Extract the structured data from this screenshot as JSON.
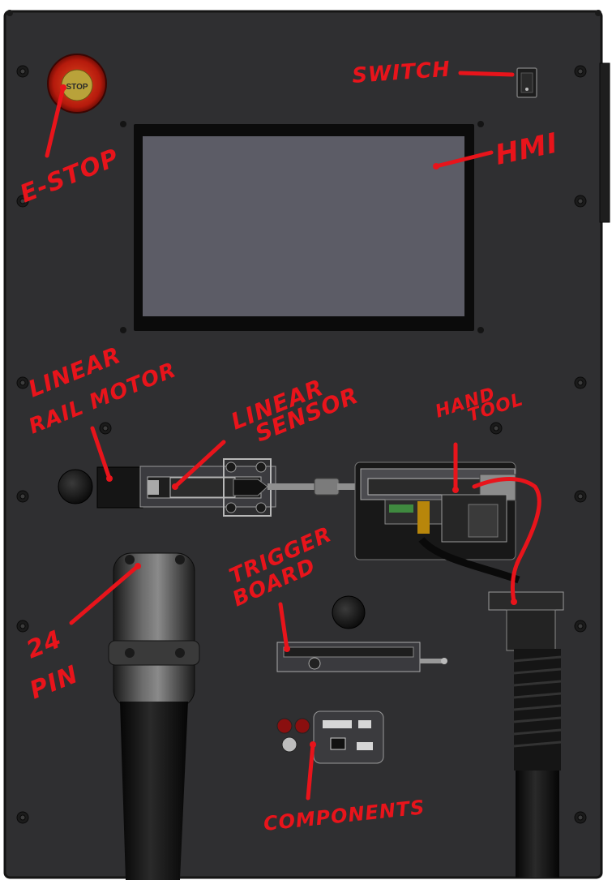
{
  "panel": {
    "colors": {
      "panel": "#2f2f31",
      "panel_edge": "#141414",
      "annotation": "#e8141b",
      "screen": "#5c5c66",
      "screen_bezel": "#0b0b0b"
    },
    "estop_text": "STOP"
  },
  "labels": {
    "switch": "SWITCH",
    "hmi": "HMI",
    "estop": "E-STOP",
    "linear_rail_motor_1": "LINEAR",
    "linear_rail_motor_2": "RAIL MOTOR",
    "linear_sensor_1": "LINEAR",
    "linear_sensor_2": "SENSOR",
    "hand_tool_1": "HAND",
    "hand_tool_2": "TOOL",
    "trigger_board_1": "TRIGGER",
    "trigger_board_2": "BOARD",
    "pin_24_1": "24",
    "pin_24_2": "PIN",
    "components": "COMPONENTS"
  }
}
